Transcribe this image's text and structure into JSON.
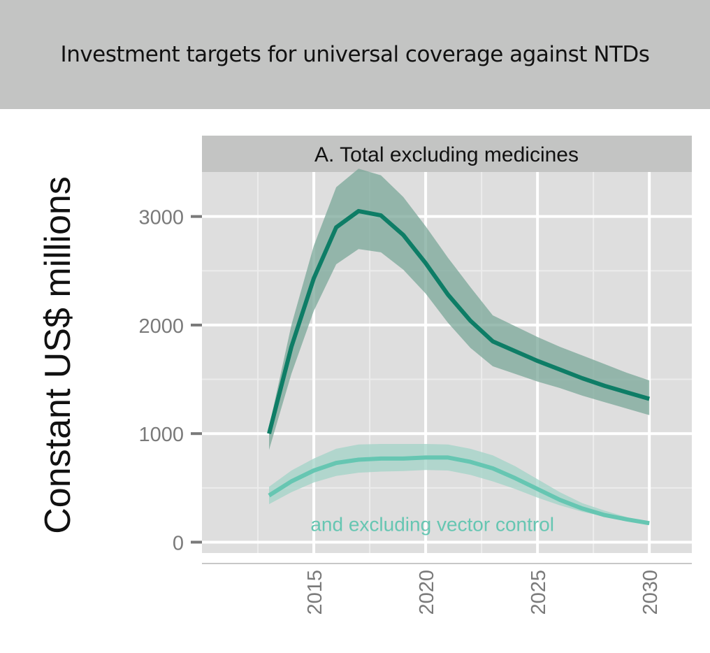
{
  "header": {
    "title": "Investment targets for universal coverage against NTDs"
  },
  "chart_data": {
    "type": "line",
    "title": "Investment targets for universal coverage against NTDs",
    "panel_title": "A. Total excluding medicines",
    "xlabel": "",
    "ylabel": "Constant US$ millions",
    "xlim": [
      2010,
      2031.9
    ],
    "ylim": [
      -100,
      3410
    ],
    "x_ticks": [
      2015,
      2020,
      2025,
      2030
    ],
    "x_tick_labels": [
      "2015",
      "2020",
      "2025",
      "2030"
    ],
    "x_minor_ticks": [
      2012.5,
      2017.5,
      2022.5,
      2027.5
    ],
    "y_ticks": [
      0,
      1000,
      2000,
      3000
    ],
    "y_tick_labels": [
      "0",
      "1000",
      "2000",
      "3000"
    ],
    "y_minor_ticks": [
      500,
      1500,
      2500
    ],
    "grid": true,
    "legend": "none",
    "x": [
      2013,
      2014,
      2015,
      2016,
      2017,
      2018,
      2019,
      2020,
      2021,
      2022,
      2023,
      2024,
      2025,
      2026,
      2027,
      2028,
      2029,
      2030
    ],
    "series": [
      {
        "name": "Total excluding medicines",
        "color": "#0e7d66",
        "band_color": "#7aa798",
        "values": [
          1000,
          1800,
          2430,
          2900,
          3050,
          3010,
          2830,
          2570,
          2280,
          2040,
          1850,
          1760,
          1670,
          1590,
          1510,
          1440,
          1380,
          1320
        ],
        "lower": [
          850,
          1550,
          2130,
          2560,
          2700,
          2670,
          2510,
          2290,
          2020,
          1790,
          1620,
          1550,
          1480,
          1420,
          1350,
          1290,
          1230,
          1170
        ],
        "upper": [
          1060,
          2000,
          2730,
          3270,
          3440,
          3380,
          3180,
          2910,
          2620,
          2350,
          2090,
          1990,
          1890,
          1800,
          1720,
          1640,
          1560,
          1490
        ]
      },
      {
        "name": "and excluding vector control",
        "color": "#66c6b2",
        "band_color": "#a1d3c7",
        "values": [
          430,
          560,
          660,
          730,
          760,
          770,
          770,
          780,
          780,
          740,
          680,
          590,
          490,
          390,
          310,
          250,
          210,
          175
        ],
        "lower": [
          350,
          460,
          550,
          610,
          640,
          650,
          655,
          665,
          660,
          620,
          560,
          490,
          410,
          340,
          280,
          235,
          200,
          165
        ],
        "upper": [
          510,
          660,
          770,
          860,
          900,
          905,
          905,
          905,
          900,
          860,
          800,
          700,
          580,
          460,
          360,
          290,
          230,
          185
        ]
      }
    ],
    "annotations": [
      {
        "text": "and excluding vector control",
        "x": 2020.3,
        "y": 160,
        "color": "#66c6b2"
      }
    ]
  }
}
